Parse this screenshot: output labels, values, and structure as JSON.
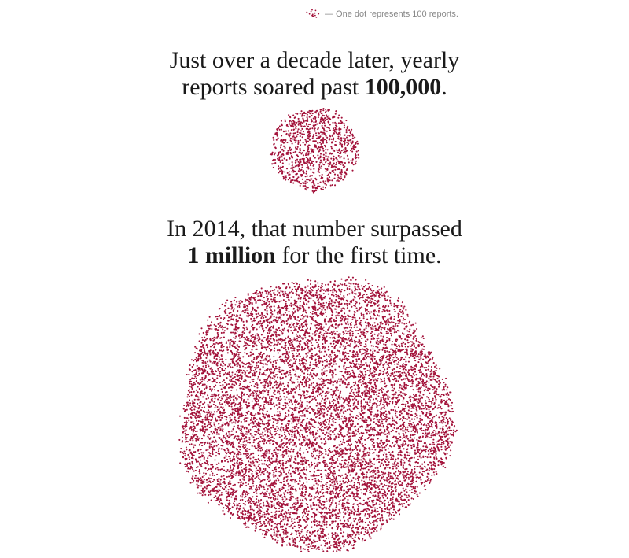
{
  "legend": {
    "text": "— One dot represents 100 reports."
  },
  "headline_1": {
    "line1": "Just over a decade later, yearly",
    "line2_pre": "reports soared past ",
    "line2_bold": "100,000",
    "line2_post": "."
  },
  "headline_2": {
    "line1": "In 2014, that number surpassed",
    "line2_bold": "1 million",
    "line2_post": " for the first time."
  },
  "colors": {
    "dot": "#a3123a",
    "text": "#1a1a1a",
    "legend_text": "#888888"
  },
  "chart_data": [
    {
      "type": "scatter",
      "description_unit": "One dot represents 100 reports.",
      "reports": 100000,
      "dots": 1000
    },
    {
      "type": "scatter",
      "description_unit": "One dot represents 100 reports.",
      "reports": 1000000,
      "dots": 10000
    }
  ]
}
